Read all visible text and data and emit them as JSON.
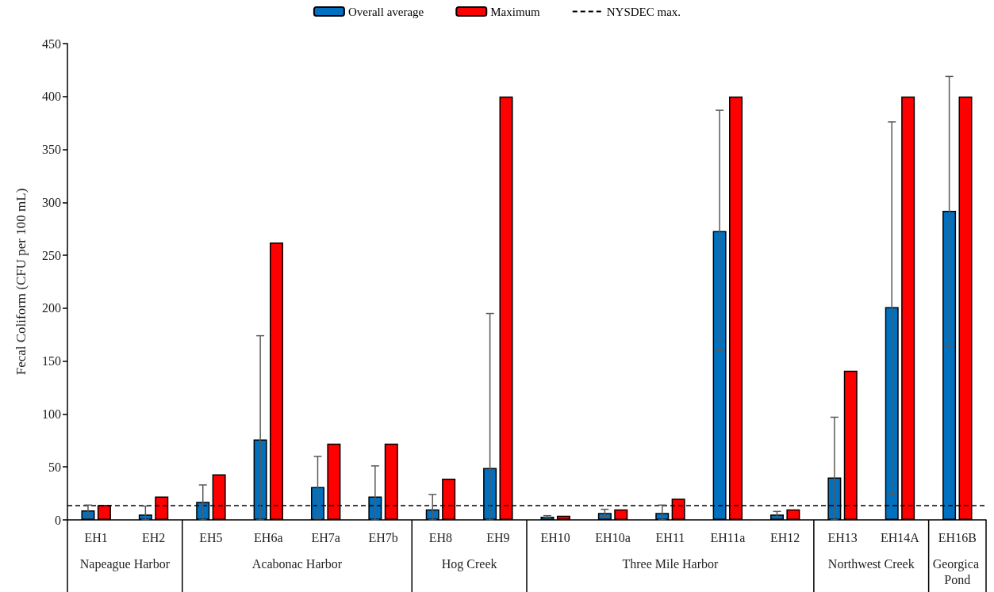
{
  "chart_data": {
    "type": "bar",
    "categories": [
      "EH1",
      "EH2",
      "EH5",
      "EH6a",
      "EH7a",
      "EH7b",
      "EH8",
      "EH9",
      "EH10",
      "EH10a",
      "EH11",
      "EH11a",
      "EH12",
      "EH13",
      "EH14A",
      "EH16B"
    ],
    "series": [
      {
        "name": "Overall average",
        "color": "#0070c0",
        "values": [
          9,
          5,
          17,
          76,
          31,
          22,
          10,
          49,
          3,
          6.5,
          6.5,
          273,
          5,
          40,
          201,
          292
        ],
        "errors": [
          [
            4,
            14
          ],
          [
            0,
            13
          ],
          [
            0,
            33
          ],
          [
            0,
            174
          ],
          [
            1,
            60
          ],
          [
            0,
            51
          ],
          [
            0,
            24
          ],
          [
            0,
            195
          ],
          [
            2,
            4
          ],
          [
            3,
            10
          ],
          [
            0,
            14
          ],
          [
            160,
            387
          ],
          [
            2,
            8
          ],
          [
            0,
            97
          ],
          [
            24,
            376
          ],
          [
            164,
            419
          ]
        ]
      },
      {
        "name": "Maximum",
        "color": "#ff0000",
        "values": [
          14,
          22,
          43,
          262,
          72,
          72,
          39,
          400,
          4,
          10,
          20,
          400,
          10,
          141,
          400,
          400
        ]
      }
    ],
    "ylabel": "Fecal Coliform (CFU per 100 mL)",
    "ylim": [
      0,
      450
    ],
    "yticks": [
      0,
      50,
      100,
      150,
      200,
      250,
      300,
      350,
      400,
      450
    ],
    "ref_lines": [
      {
        "axis": "y",
        "value": 14,
        "label": "NYSDEC max.",
        "color": "#000000",
        "line_style": "dashed"
      }
    ],
    "annotations": [
      "Napeague Harbor",
      "Acabonac Harbor",
      "Hog Creek",
      "Three Mile Harbor",
      "Northwest Creek",
      "Georgica Pond"
    ],
    "legend": "top",
    "grid": false
  }
}
